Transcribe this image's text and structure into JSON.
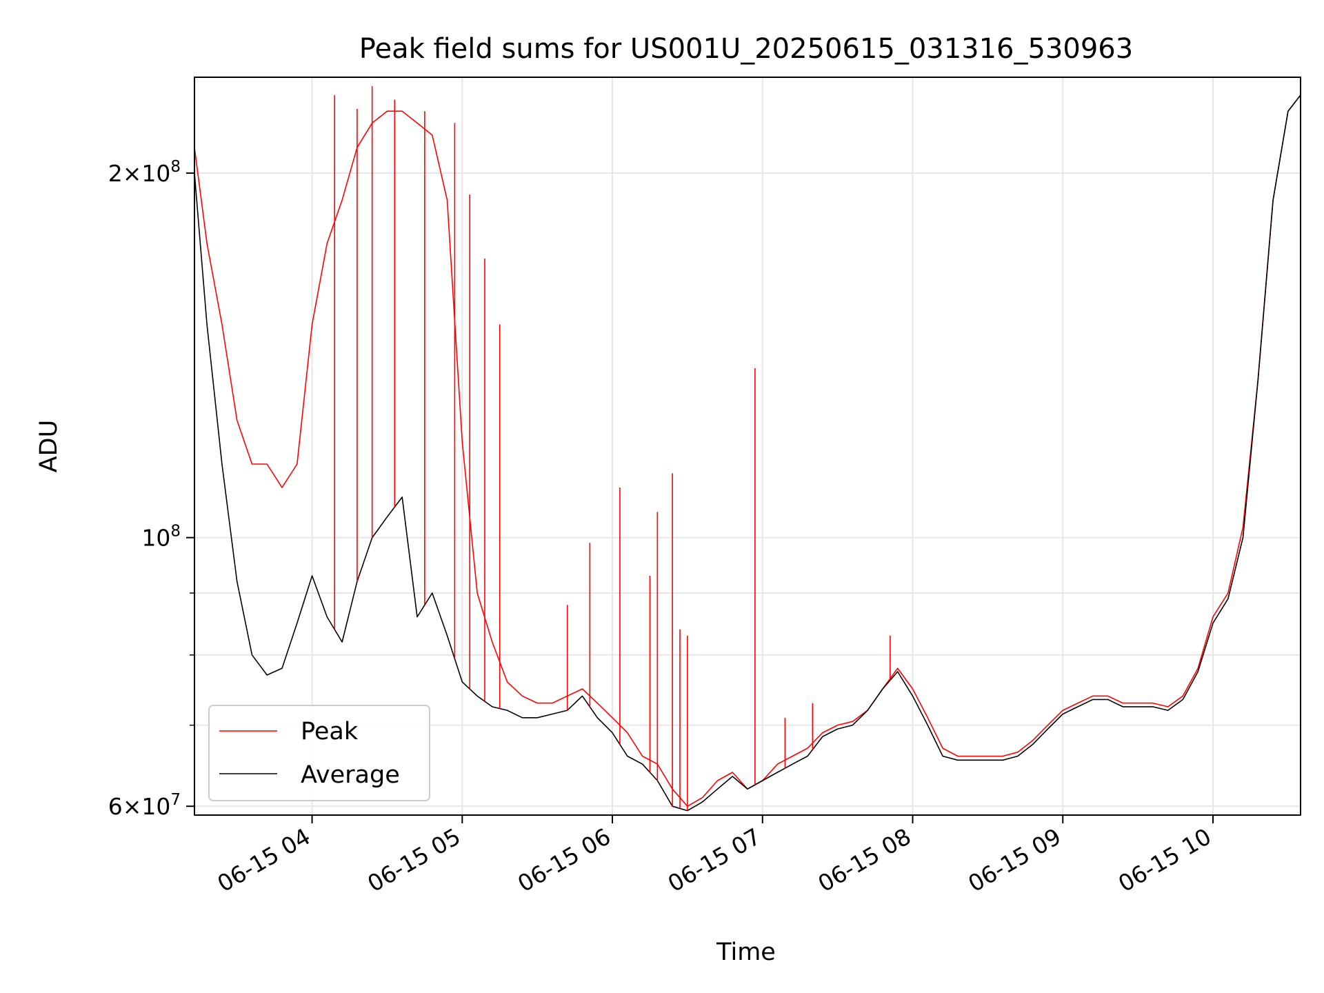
{
  "chart_data": {
    "type": "line",
    "title": "Peak field sums for US001U_20250615_031316_530963",
    "xlabel": "Time",
    "ylabel": "ADU",
    "yscale": "log",
    "xlim": [
      "06-15 03:13",
      "06-15 10:35"
    ],
    "ylim": [
      59000000,
      240000000
    ],
    "grid": true,
    "legend_position": "lower-left",
    "xticks": [
      "06-15 04",
      "06-15 05",
      "06-15 06",
      "06-15 07",
      "06-15 08",
      "06-15 09",
      "06-15 10"
    ],
    "xtick_values": [
      "06-15 04:00",
      "06-15 05:00",
      "06-15 06:00",
      "06-15 07:00",
      "06-15 08:00",
      "06-15 09:00",
      "06-15 10:00"
    ],
    "yticks": [
      {
        "value": 60000000,
        "mantissa": "6",
        "exp": "7"
      },
      {
        "value": 100000000,
        "mantissa": "",
        "exp": "8"
      },
      {
        "value": 200000000,
        "mantissa": "2",
        "exp": "8"
      }
    ],
    "yticks_minor": [
      70000000,
      80000000,
      90000000
    ],
    "series": [
      {
        "name": "Peak",
        "color": "#ff0000",
        "x": [
          "06-15 03:13",
          "06-15 03:18",
          "06-15 03:24",
          "06-15 03:30",
          "06-15 03:36",
          "06-15 03:42",
          "06-15 03:48",
          "06-15 03:54",
          "06-15 04:00",
          "06-15 04:06",
          "06-15 04:12",
          "06-15 04:18",
          "06-15 04:24",
          "06-15 04:30",
          "06-15 04:36",
          "06-15 04:42",
          "06-15 04:48",
          "06-15 04:54",
          "06-15 05:00",
          "06-15 05:06",
          "06-15 05:12",
          "06-15 05:18",
          "06-15 05:24",
          "06-15 05:30",
          "06-15 05:36",
          "06-15 05:42",
          "06-15 05:48",
          "06-15 05:54",
          "06-15 06:00",
          "06-15 06:06",
          "06-15 06:12",
          "06-15 06:18",
          "06-15 06:24",
          "06-15 06:30",
          "06-15 06:36",
          "06-15 06:42",
          "06-15 06:48",
          "06-15 06:54",
          "06-15 07:00",
          "06-15 07:06",
          "06-15 07:12",
          "06-15 07:18",
          "06-15 07:24",
          "06-15 07:30",
          "06-15 07:36",
          "06-15 07:42",
          "06-15 07:48",
          "06-15 07:54",
          "06-15 08:00",
          "06-15 08:06",
          "06-15 08:12",
          "06-15 08:18",
          "06-15 08:24",
          "06-15 08:30",
          "06-15 08:36",
          "06-15 08:42",
          "06-15 08:48",
          "06-15 08:54",
          "06-15 09:00",
          "06-15 09:06",
          "06-15 09:12",
          "06-15 09:18",
          "06-15 09:24",
          "06-15 09:30",
          "06-15 09:36",
          "06-15 09:42",
          "06-15 09:48",
          "06-15 09:54",
          "06-15 10:00",
          "06-15 10:06",
          "06-15 10:12",
          "06-15 10:18",
          "06-15 10:24",
          "06-15 10:30",
          "06-15 10:35"
        ],
        "values": [
          210000000,
          175000000,
          150000000,
          125000000,
          115000000,
          115000000,
          110000000,
          115000000,
          150000000,
          175000000,
          190000000,
          210000000,
          220000000,
          225000000,
          225000000,
          220000000,
          215000000,
          190000000,
          120000000,
          90000000,
          82000000,
          76000000,
          74000000,
          73000000,
          73000000,
          74000000,
          75000000,
          73000000,
          71000000,
          69000000,
          66000000,
          65000000,
          62000000,
          60000000,
          61000000,
          63000000,
          64000000,
          62000000,
          63000000,
          65000000,
          66000000,
          67000000,
          69000000,
          70000000,
          70500000,
          72000000,
          75000000,
          78000000,
          75000000,
          71000000,
          67000000,
          66000000,
          66000000,
          66000000,
          66000000,
          66500000,
          68000000,
          70000000,
          72000000,
          73000000,
          74000000,
          74000000,
          73000000,
          73000000,
          73000000,
          72500000,
          74000000,
          78000000,
          86000000,
          90000000,
          102000000,
          135000000,
          190000000,
          225000000,
          232000000
        ]
      },
      {
        "name": "Average",
        "color": "#000000",
        "x": [
          "06-15 03:13",
          "06-15 03:18",
          "06-15 03:24",
          "06-15 03:30",
          "06-15 03:36",
          "06-15 03:42",
          "06-15 03:48",
          "06-15 03:54",
          "06-15 04:00",
          "06-15 04:06",
          "06-15 04:12",
          "06-15 04:18",
          "06-15 04:24",
          "06-15 04:30",
          "06-15 04:36",
          "06-15 04:42",
          "06-15 04:48",
          "06-15 04:54",
          "06-15 05:00",
          "06-15 05:06",
          "06-15 05:12",
          "06-15 05:18",
          "06-15 05:24",
          "06-15 05:30",
          "06-15 05:36",
          "06-15 05:42",
          "06-15 05:48",
          "06-15 05:54",
          "06-15 06:00",
          "06-15 06:06",
          "06-15 06:12",
          "06-15 06:18",
          "06-15 06:24",
          "06-15 06:30",
          "06-15 06:36",
          "06-15 06:42",
          "06-15 06:48",
          "06-15 06:54",
          "06-15 07:00",
          "06-15 07:06",
          "06-15 07:12",
          "06-15 07:18",
          "06-15 07:24",
          "06-15 07:30",
          "06-15 07:36",
          "06-15 07:42",
          "06-15 07:48",
          "06-15 07:54",
          "06-15 08:00",
          "06-15 08:06",
          "06-15 08:12",
          "06-15 08:18",
          "06-15 08:24",
          "06-15 08:30",
          "06-15 08:36",
          "06-15 08:42",
          "06-15 08:48",
          "06-15 08:54",
          "06-15 09:00",
          "06-15 09:06",
          "06-15 09:12",
          "06-15 09:18",
          "06-15 09:24",
          "06-15 09:30",
          "06-15 09:36",
          "06-15 09:42",
          "06-15 09:48",
          "06-15 09:54",
          "06-15 10:00",
          "06-15 10:06",
          "06-15 10:12",
          "06-15 10:18",
          "06-15 10:24",
          "06-15 10:30",
          "06-15 10:35"
        ],
        "values": [
          200000000,
          150000000,
          115000000,
          92000000,
          80000000,
          77000000,
          78000000,
          85000000,
          93000000,
          86000000,
          82000000,
          92000000,
          100000000,
          104000000,
          108000000,
          86000000,
          90000000,
          83000000,
          76000000,
          74000000,
          72500000,
          72000000,
          71000000,
          71000000,
          71500000,
          72000000,
          74000000,
          71000000,
          69000000,
          66000000,
          65000000,
          63000000,
          60000000,
          59500000,
          60500000,
          62000000,
          63500000,
          62000000,
          63000000,
          64000000,
          65000000,
          66000000,
          68500000,
          69500000,
          70000000,
          72000000,
          75000000,
          77500000,
          74000000,
          70000000,
          66000000,
          65500000,
          65500000,
          65500000,
          65500000,
          66000000,
          67500000,
          69500000,
          71500000,
          72500000,
          73500000,
          73500000,
          72500000,
          72500000,
          72500000,
          72000000,
          73500000,
          77500000,
          85000000,
          89000000,
          100000000,
          135000000,
          190000000,
          225000000,
          232000000
        ]
      }
    ],
    "spikes": {
      "series": "Peak",
      "x": [
        "06-15 04:09",
        "06-15 04:18",
        "06-15 04:24",
        "06-15 04:33",
        "06-15 04:45",
        "06-15 04:57",
        "06-15 05:03",
        "06-15 05:09",
        "06-15 05:15",
        "06-15 05:42",
        "06-15 05:51",
        "06-15 06:03",
        "06-15 06:15",
        "06-15 06:18",
        "06-15 06:24",
        "06-15 06:27",
        "06-15 06:30",
        "06-15 06:57",
        "06-15 07:09",
        "06-15 07:20",
        "06-15 07:51"
      ],
      "values": [
        232000000,
        226000000,
        236000000,
        230000000,
        225000000,
        220000000,
        192000000,
        170000000,
        150000000,
        88000000,
        99000000,
        110000000,
        93000000,
        105000000,
        113000000,
        84000000,
        83000000,
        138000000,
        71000000,
        73000000,
        83000000
      ]
    }
  },
  "legend": {
    "items": [
      {
        "label": "Peak",
        "color": "#ff0000"
      },
      {
        "label": "Average",
        "color": "#000000"
      }
    ]
  }
}
